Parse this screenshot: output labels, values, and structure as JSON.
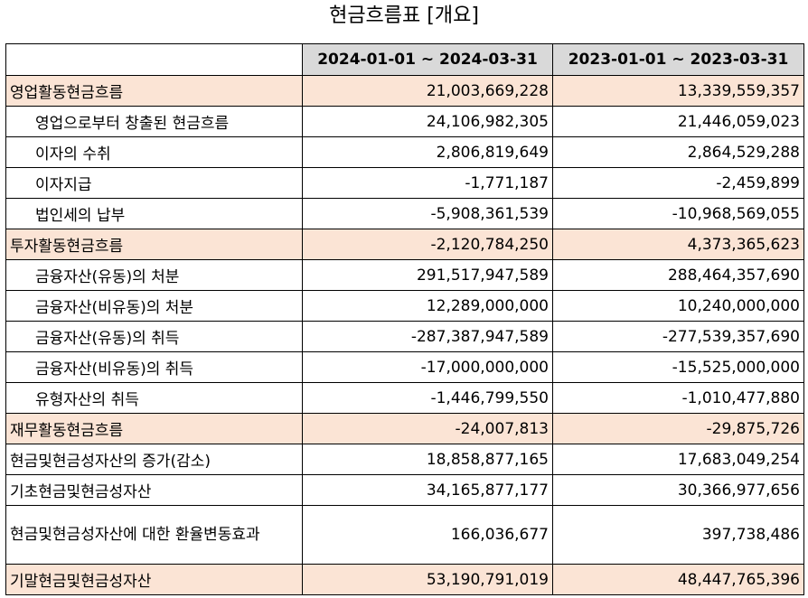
{
  "title": "현금흐름표 [개요]",
  "columns": [
    "2024-01-01 ~ 2024-03-31",
    "2023-01-01 ~ 2023-03-31"
  ],
  "rows": [
    {
      "label": "영업활동현금흐름",
      "v1": "21,003,669,228",
      "v2": "13,339,559,357"
    },
    {
      "label": "영업으로부터 창출된 현금흐름",
      "v1": "24,106,982,305",
      "v2": "21,446,059,023"
    },
    {
      "label": "이자의 수취",
      "v1": "2,806,819,649",
      "v2": "2,864,529,288"
    },
    {
      "label": "이자지급",
      "v1": "-1,771,187",
      "v2": "-2,459,899"
    },
    {
      "label": "법인세의 납부",
      "v1": "-5,908,361,539",
      "v2": "-10,968,569,055"
    },
    {
      "label": "투자활동현금흐름",
      "v1": "-2,120,784,250",
      "v2": "4,373,365,623"
    },
    {
      "label": "금융자산(유동)의 처분",
      "v1": "291,517,947,589",
      "v2": "288,464,357,690"
    },
    {
      "label": "금융자산(비유동)의 처분",
      "v1": "12,289,000,000",
      "v2": "10,240,000,000"
    },
    {
      "label": "금융자산(유동)의 취득",
      "v1": "-287,387,947,589",
      "v2": "-277,539,357,690"
    },
    {
      "label": "금융자산(비유동)의 취득",
      "v1": "-17,000,000,000",
      "v2": "-15,525,000,000"
    },
    {
      "label": "유형자산의 취득",
      "v1": "-1,446,799,550",
      "v2": "-1,010,477,880"
    },
    {
      "label": "재무활동현금흐름",
      "v1": "-24,007,813",
      "v2": "-29,875,726"
    },
    {
      "label": "현금및현금성자산의 증가(감소)",
      "v1": "18,858,877,165",
      "v2": "17,683,049,254"
    },
    {
      "label": "기초현금및현금성자산",
      "v1": "34,165,877,177",
      "v2": "30,366,977,656"
    },
    {
      "label": "현금및현금성자산에 대한 환율변동효과",
      "v1": "166,036,677",
      "v2": "397,738,486"
    },
    {
      "label": "기말현금및현금성자산",
      "v1": "53,190,791,019",
      "v2": "48,447,765,396"
    }
  ],
  "colors": {
    "highlight": "#fbe4d5",
    "header": "#d9d9d9"
  }
}
